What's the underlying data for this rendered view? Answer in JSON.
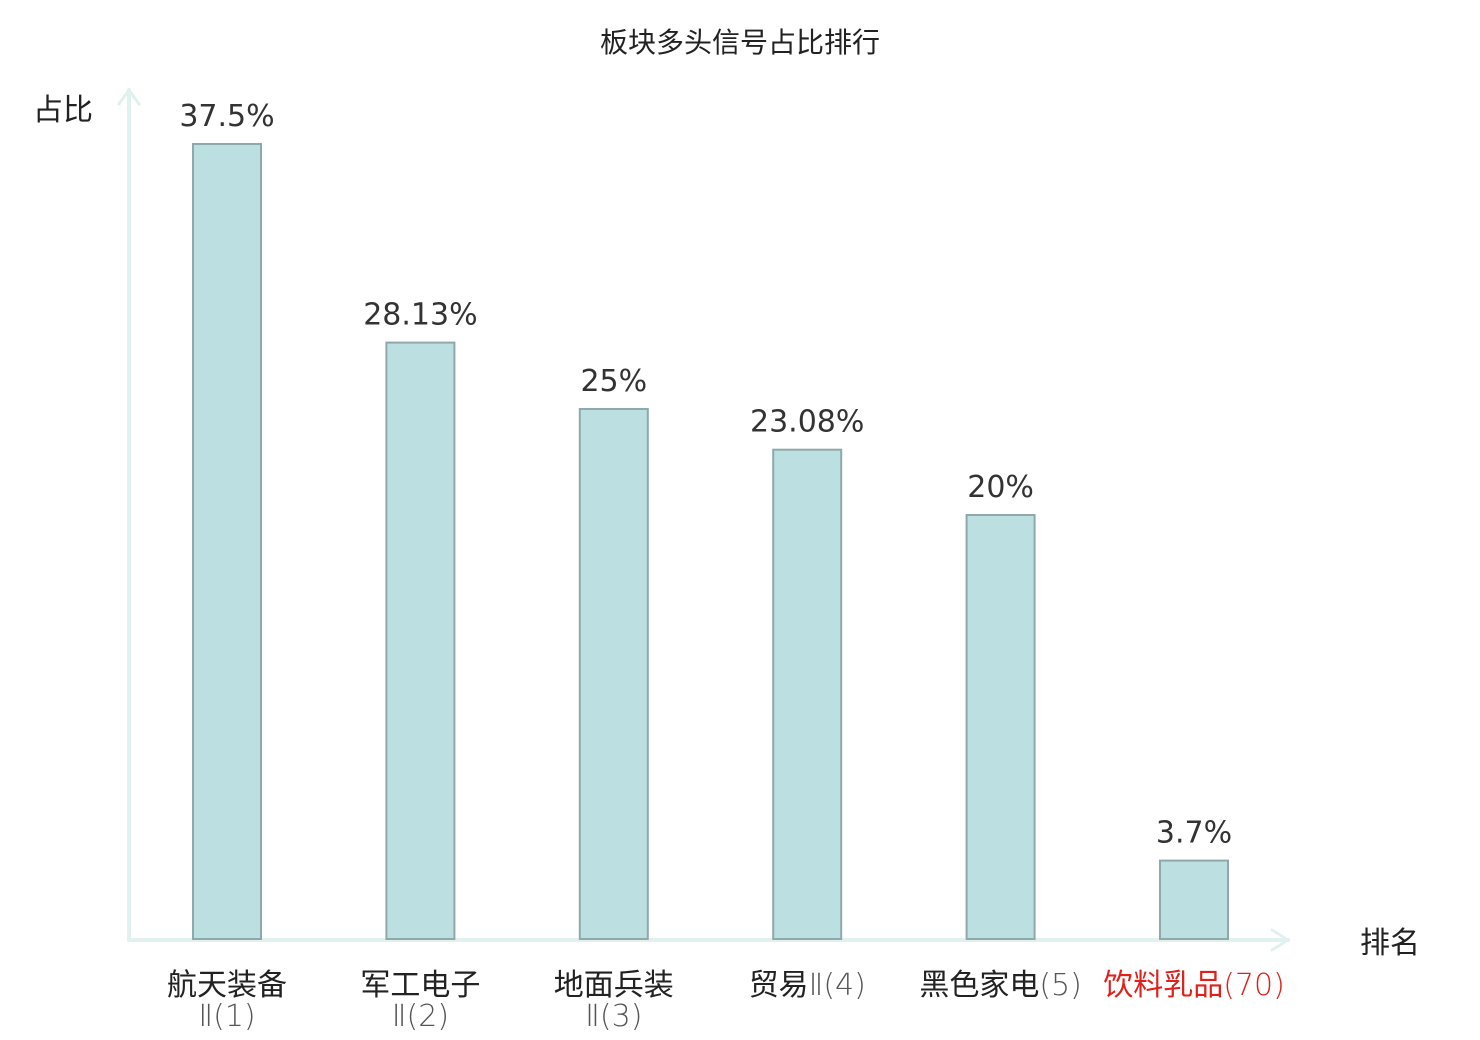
{
  "chart_data": {
    "type": "bar",
    "title": "板块多头信号占比排行",
    "ylabel": "占比",
    "xlabel": "排名",
    "ylim": [
      0,
      37.5
    ],
    "grid": false,
    "categories": [
      {
        "name": "航天装备",
        "rank": "Ⅱ(1)",
        "highlight": false
      },
      {
        "name": "军工电子",
        "rank": "Ⅱ(2)",
        "highlight": false
      },
      {
        "name": "地面兵装",
        "rank": "Ⅱ(3)",
        "highlight": false
      },
      {
        "name": "贸易",
        "rank": "Ⅱ(4)",
        "highlight": false
      },
      {
        "name": "黑色家电",
        "rank": "(5)",
        "highlight": false
      },
      {
        "name": "饮料乳品",
        "rank": "(70)",
        "highlight": true
      }
    ],
    "values": [
      37.5,
      28.13,
      25,
      23.08,
      20,
      3.7
    ],
    "value_labels": [
      "37.5%",
      "28.13%",
      "25%",
      "23.08%",
      "20%",
      "3.7%"
    ]
  },
  "colors": {
    "bar_fill": "#bce0e2",
    "bar_stroke": "#8fa9ab",
    "axis": "#e0f1ef",
    "label_text": "#222222",
    "rank_text": "#555555",
    "highlight_text": "#e0201b"
  }
}
